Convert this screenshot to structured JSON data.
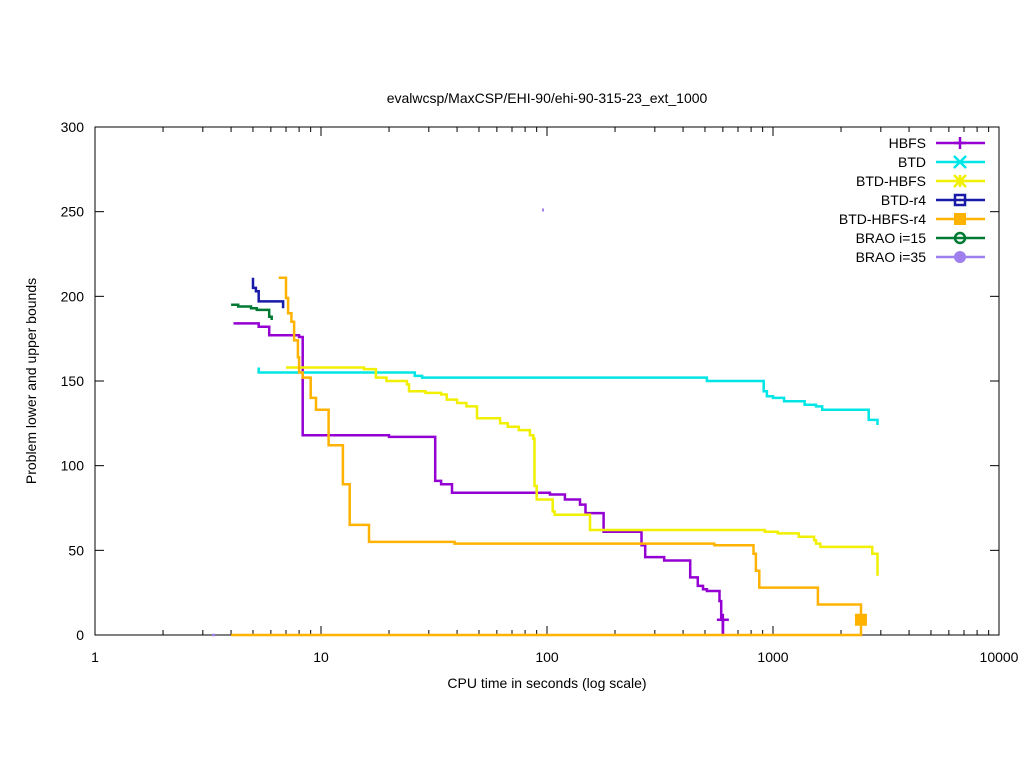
{
  "chart_data": {
    "type": "line",
    "title": "evalwcsp/MaxCSP/EHI-90/ehi-90-315-23_ext_1000",
    "xlabel": "CPU time in seconds (log scale)",
    "ylabel": "Problem lower and upper bounds",
    "xscale": "log",
    "xlim": [
      1,
      10000
    ],
    "ylim": [
      0,
      300
    ],
    "x_ticks": [
      {
        "value": 1,
        "label": "1"
      },
      {
        "value": 10,
        "label": "10"
      },
      {
        "value": 100,
        "label": "100"
      },
      {
        "value": 1000,
        "label": "1000"
      },
      {
        "value": 10000,
        "label": "10000"
      }
    ],
    "y_ticks": [
      {
        "value": 0,
        "label": "0"
      },
      {
        "value": 50,
        "label": "50"
      },
      {
        "value": 100,
        "label": "100"
      },
      {
        "value": 150,
        "label": "150"
      },
      {
        "value": 200,
        "label": "200"
      },
      {
        "value": 250,
        "label": "250"
      },
      {
        "value": 300,
        "label": "300"
      }
    ],
    "grid": false,
    "legend_position": "top-right",
    "series": [
      {
        "name": "HBFS",
        "color": "#9400d3",
        "marker": "plus",
        "points": [
          [
            4.1,
            184
          ],
          [
            5.3,
            184
          ],
          [
            5.3,
            182
          ],
          [
            5.9,
            182
          ],
          [
            5.9,
            177
          ],
          [
            8.0,
            177
          ],
          [
            8.0,
            176
          ],
          [
            8.3,
            176
          ],
          [
            8.3,
            118
          ],
          [
            20,
            118
          ],
          [
            20,
            117
          ],
          [
            32,
            117
          ],
          [
            32,
            91
          ],
          [
            34,
            91
          ],
          [
            34,
            89
          ],
          [
            38,
            89
          ],
          [
            38,
            84
          ],
          [
            103,
            84
          ],
          [
            103,
            83
          ],
          [
            120,
            83
          ],
          [
            120,
            80
          ],
          [
            140,
            80
          ],
          [
            140,
            77
          ],
          [
            148,
            77
          ],
          [
            148,
            72
          ],
          [
            178,
            72
          ],
          [
            178,
            61
          ],
          [
            262,
            61
          ],
          [
            262,
            53
          ],
          [
            272,
            53
          ],
          [
            272,
            46
          ],
          [
            330,
            46
          ],
          [
            330,
            44
          ],
          [
            430,
            44
          ],
          [
            430,
            34
          ],
          [
            465,
            34
          ],
          [
            465,
            29
          ],
          [
            490,
            29
          ],
          [
            490,
            27
          ],
          [
            510,
            27
          ],
          [
            510,
            26
          ],
          [
            580,
            26
          ],
          [
            580,
            20
          ],
          [
            590,
            20
          ],
          [
            590,
            9
          ],
          [
            600,
            9
          ],
          [
            600,
            0
          ]
        ],
        "lower": [
          [
            600,
            0
          ],
          [
            600,
            9
          ]
        ],
        "markers": [
          [
            600,
            9
          ]
        ]
      },
      {
        "name": "BTD",
        "color": "#00e5e5",
        "marker": "x",
        "points": [
          [
            5.3,
            158
          ],
          [
            5.3,
            155
          ],
          [
            26,
            155
          ],
          [
            26,
            153
          ],
          [
            28,
            153
          ],
          [
            28,
            152
          ],
          [
            510,
            152
          ],
          [
            510,
            150
          ],
          [
            910,
            150
          ],
          [
            910,
            144
          ],
          [
            940,
            144
          ],
          [
            940,
            141
          ],
          [
            1000,
            141
          ],
          [
            1000,
            140
          ],
          [
            1120,
            140
          ],
          [
            1120,
            138
          ],
          [
            1380,
            138
          ],
          [
            1380,
            136
          ],
          [
            1550,
            136
          ],
          [
            1550,
            135
          ],
          [
            1650,
            135
          ],
          [
            1650,
            133
          ],
          [
            2650,
            133
          ],
          [
            2650,
            127
          ],
          [
            2900,
            127
          ],
          [
            2900,
            124
          ]
        ],
        "lower": [],
        "markers": []
      },
      {
        "name": "BTD-HBFS",
        "color": "#f0f000",
        "marker": "asterisk",
        "points": [
          [
            7.0,
            158
          ],
          [
            15.5,
            158
          ],
          [
            15.5,
            157
          ],
          [
            17.5,
            157
          ],
          [
            17.5,
            152
          ],
          [
            19.5,
            152
          ],
          [
            19.5,
            150
          ],
          [
            24,
            150
          ],
          [
            24,
            148
          ],
          [
            24.5,
            148
          ],
          [
            24.5,
            144
          ],
          [
            29,
            144
          ],
          [
            29,
            143
          ],
          [
            34,
            143
          ],
          [
            34,
            142
          ],
          [
            36,
            142
          ],
          [
            36,
            139
          ],
          [
            40,
            139
          ],
          [
            40,
            137
          ],
          [
            44,
            137
          ],
          [
            44,
            135
          ],
          [
            49,
            135
          ],
          [
            49,
            128
          ],
          [
            62,
            128
          ],
          [
            62,
            125
          ],
          [
            67,
            125
          ],
          [
            67,
            123
          ],
          [
            75,
            123
          ],
          [
            75,
            121
          ],
          [
            84,
            121
          ],
          [
            84,
            118
          ],
          [
            87,
            118
          ],
          [
            87,
            116
          ],
          [
            88,
            116
          ],
          [
            88,
            88
          ],
          [
            90,
            88
          ],
          [
            90,
            80
          ],
          [
            106,
            80
          ],
          [
            106,
            73
          ],
          [
            108,
            73
          ],
          [
            108,
            71
          ],
          [
            155,
            71
          ],
          [
            155,
            62
          ],
          [
            920,
            62
          ],
          [
            920,
            61
          ],
          [
            1050,
            61
          ],
          [
            1050,
            60
          ],
          [
            1300,
            60
          ],
          [
            1300,
            58
          ],
          [
            1520,
            58
          ],
          [
            1520,
            56
          ],
          [
            1550,
            56
          ],
          [
            1550,
            54
          ],
          [
            1620,
            54
          ],
          [
            1620,
            52
          ],
          [
            2750,
            52
          ],
          [
            2750,
            48
          ],
          [
            2900,
            48
          ],
          [
            2900,
            35
          ]
        ],
        "lower": [],
        "markers": []
      },
      {
        "name": "BTD-r4",
        "color": "#1a1aa8",
        "marker": "square-open",
        "points": [
          [
            5.0,
            211
          ],
          [
            5.0,
            205
          ],
          [
            5.15,
            205
          ],
          [
            5.15,
            203
          ],
          [
            5.3,
            203
          ],
          [
            5.3,
            197
          ],
          [
            6.8,
            197
          ],
          [
            6.8,
            193
          ]
        ],
        "lower": [],
        "markers": []
      },
      {
        "name": "BTD-HBFS-r4",
        "color": "#ffb300",
        "marker": "square-filled",
        "points": [
          [
            6.5,
            211
          ],
          [
            7.0,
            211
          ],
          [
            7.0,
            199
          ],
          [
            7.15,
            199
          ],
          [
            7.15,
            190
          ],
          [
            7.4,
            190
          ],
          [
            7.4,
            185
          ],
          [
            7.6,
            185
          ],
          [
            7.6,
            174
          ],
          [
            7.9,
            174
          ],
          [
            7.9,
            164
          ],
          [
            8.0,
            164
          ],
          [
            8.0,
            155
          ],
          [
            8.3,
            155
          ],
          [
            8.3,
            152
          ],
          [
            9.0,
            152
          ],
          [
            9.0,
            140
          ],
          [
            9.5,
            140
          ],
          [
            9.5,
            133
          ],
          [
            10.8,
            133
          ],
          [
            10.8,
            112
          ],
          [
            12.5,
            112
          ],
          [
            12.5,
            89
          ],
          [
            13.4,
            89
          ],
          [
            13.4,
            65
          ],
          [
            16.3,
            65
          ],
          [
            16.3,
            55
          ],
          [
            39,
            55
          ],
          [
            39,
            54
          ],
          [
            550,
            54
          ],
          [
            550,
            53
          ],
          [
            820,
            53
          ],
          [
            820,
            48
          ],
          [
            840,
            48
          ],
          [
            840,
            38
          ],
          [
            870,
            38
          ],
          [
            870,
            28
          ],
          [
            1580,
            28
          ],
          [
            1580,
            18
          ],
          [
            2450,
            18
          ],
          [
            2450,
            9
          ]
        ],
        "lower": [
          [
            4.0,
            0
          ],
          [
            2450,
            0
          ],
          [
            2450,
            9
          ]
        ],
        "markers": [
          [
            2450,
            9
          ]
        ]
      },
      {
        "name": "BRAO i=15",
        "color": "#007a33",
        "marker": "circle-open",
        "points": [
          [
            4.0,
            195
          ],
          [
            4.3,
            195
          ],
          [
            4.3,
            194
          ],
          [
            4.9,
            194
          ],
          [
            4.9,
            193
          ],
          [
            5.2,
            193
          ],
          [
            5.2,
            192
          ],
          [
            5.9,
            192
          ],
          [
            5.9,
            188
          ],
          [
            6.05,
            188
          ],
          [
            6.05,
            186
          ]
        ],
        "lower": [],
        "markers": []
      },
      {
        "name": "BRAO i=35",
        "color": "#9f7fee",
        "marker": "circle-filled",
        "points": [
          [
            96,
            251
          ]
        ],
        "lower": [
          [
            3.3,
            0
          ],
          [
            3.4,
            0
          ]
        ],
        "markers": []
      }
    ]
  }
}
